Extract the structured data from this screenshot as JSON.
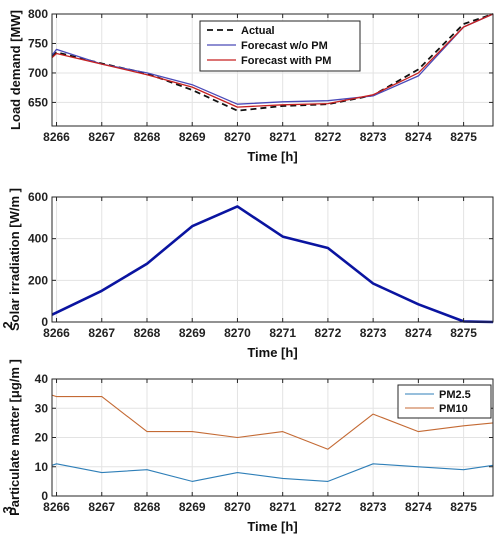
{
  "chart_data": [
    {
      "type": "line",
      "xlabel": "Time [h]",
      "ylabel": "Load demand [MW]",
      "xlim": [
        8265.9,
        8275.65
      ],
      "ylim": [
        610,
        800
      ],
      "xticks": [
        8266,
        8267,
        8268,
        8269,
        8270,
        8271,
        8272,
        8273,
        8274,
        8275
      ],
      "xtick_labels": [
        "8266",
        "8267",
        "8268",
        "8269",
        "8270",
        "8271",
        "8272",
        "8273",
        "8274",
        "8275"
      ],
      "yticks": [
        650,
        700,
        750,
        800
      ],
      "ytick_labels": [
        "650",
        "700",
        "750",
        "800"
      ],
      "grid": true,
      "legend": "top-center",
      "series": [
        {
          "name": "Actual",
          "color": "#111111",
          "style": "dashed",
          "width": 1.8,
          "x": [
            8265.9,
            8266,
            8267,
            8268,
            8269,
            8270,
            8271,
            8272,
            8273,
            8274,
            8275,
            8275.65
          ],
          "y": [
            728,
            735,
            716,
            699,
            671,
            636,
            644,
            647,
            662,
            706,
            783,
            800
          ]
        },
        {
          "name": "Forecast w/o PM",
          "color": "#4a4ab8",
          "style": "solid",
          "width": 1.3,
          "x": [
            8265.9,
            8266,
            8267,
            8268,
            8269,
            8270,
            8271,
            8272,
            8273,
            8274,
            8275,
            8275.65
          ],
          "y": [
            730,
            740,
            715,
            700,
            680,
            647,
            651,
            653,
            661,
            695,
            778,
            800
          ]
        },
        {
          "name": "Forecast with PM",
          "color": "#c62020",
          "style": "solid",
          "width": 1.3,
          "x": [
            8265.9,
            8266,
            8267,
            8268,
            8269,
            8270,
            8271,
            8272,
            8273,
            8274,
            8275,
            8275.65
          ],
          "y": [
            726,
            733,
            715,
            697,
            676,
            642,
            646,
            648,
            663,
            700,
            778,
            800
          ]
        }
      ]
    },
    {
      "type": "line",
      "xlabel": "Time [h]",
      "ylabel": "Solar irradiation [W/m ]",
      "ylabel_sup": "2",
      "xlim": [
        8265.9,
        8275.65
      ],
      "ylim": [
        0,
        600
      ],
      "xticks": [
        8266,
        8267,
        8268,
        8269,
        8270,
        8271,
        8272,
        8273,
        8274,
        8275
      ],
      "xtick_labels": [
        "8266",
        "8267",
        "8268",
        "8269",
        "8270",
        "8271",
        "8272",
        "8273",
        "8274",
        "8275"
      ],
      "yticks": [
        0,
        200,
        400,
        600
      ],
      "ytick_labels": [
        "0",
        "200",
        "400",
        "600"
      ],
      "grid": true,
      "legend": "none",
      "series": [
        {
          "color": "#0a14a0",
          "style": "solid",
          "width": 2.6,
          "x": [
            8265.9,
            8266,
            8267,
            8268,
            8269,
            8270,
            8271,
            8272,
            8273,
            8274,
            8275,
            8275.65
          ],
          "y": [
            35,
            45,
            150,
            280,
            460,
            555,
            410,
            355,
            185,
            85,
            3,
            0
          ]
        }
      ]
    },
    {
      "type": "line",
      "xlabel": "Time [h]",
      "ylabel": "Particulate matter [μg/m ]",
      "ylabel_sup": "3",
      "xlim": [
        8265.9,
        8275.65
      ],
      "ylim": [
        0,
        40
      ],
      "xticks": [
        8266,
        8267,
        8268,
        8269,
        8270,
        8271,
        8272,
        8273,
        8274,
        8275
      ],
      "xtick_labels": [
        "8266",
        "8267",
        "8268",
        "8269",
        "8270",
        "8271",
        "8272",
        "8273",
        "8274",
        "8275"
      ],
      "yticks": [
        0,
        10,
        20,
        30,
        40
      ],
      "ytick_labels": [
        "0",
        "10",
        "20",
        "30",
        "40"
      ],
      "grid": true,
      "legend": "top-right",
      "series": [
        {
          "name": "PM2.5",
          "color": "#2f7fb8",
          "style": "solid",
          "width": 1.1,
          "x": [
            8265.9,
            8266,
            8267,
            8268,
            8269,
            8270,
            8271,
            8272,
            8273,
            8274,
            8275,
            8275.65
          ],
          "y": [
            10.5,
            11,
            8,
            9,
            5,
            8,
            6,
            5,
            11,
            10,
            9,
            10.5
          ]
        },
        {
          "name": "PM10",
          "color": "#c46a34",
          "style": "solid",
          "width": 1.1,
          "x": [
            8265.9,
            8266,
            8267,
            8268,
            8269,
            8270,
            8271,
            8272,
            8273,
            8274,
            8275,
            8275.65
          ],
          "y": [
            34.5,
            34,
            34,
            22,
            22,
            20,
            22,
            16,
            28,
            22,
            24,
            25
          ]
        }
      ]
    }
  ]
}
